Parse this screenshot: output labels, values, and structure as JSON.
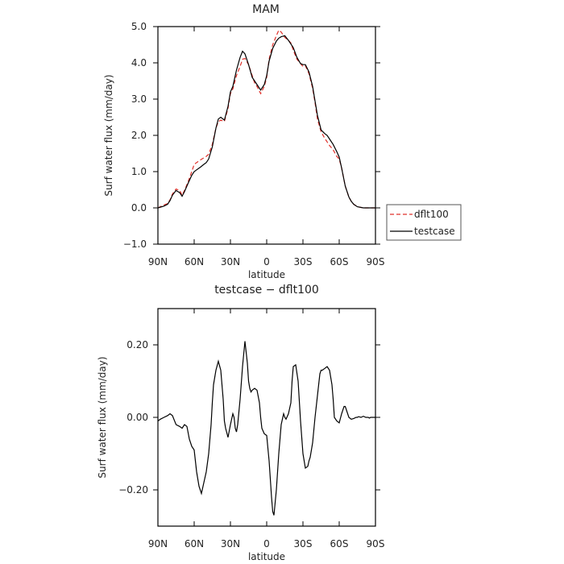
{
  "chart_data": [
    {
      "type": "line",
      "title": "MAM",
      "xlabel": "latitude",
      "ylabel": "Surf water flux (mm/day)",
      "xlim": [
        90,
        -90
      ],
      "ylim": [
        -1.0,
        5.0
      ],
      "xticks": [
        90,
        60,
        30,
        0,
        -30,
        -60,
        -90
      ],
      "xtick_labels": [
        "90N",
        "60N",
        "30N",
        "0",
        "30S",
        "60S",
        "90S"
      ],
      "yticks": [
        -1.0,
        0.0,
        1.0,
        2.0,
        3.0,
        4.0,
        5.0
      ],
      "ytick_labels": [
        "−1.0",
        "0.0",
        "1.0",
        "2.0",
        "3.0",
        "4.0",
        "5.0"
      ],
      "legend": "right",
      "grid": false,
      "series": [
        {
          "name": "dflt100",
          "color": "#e0302a",
          "dash": "dashed",
          "x": [
            90,
            85,
            82,
            80,
            78,
            75,
            72,
            70,
            68,
            65,
            62,
            60,
            58,
            55,
            52,
            50,
            48,
            45,
            42,
            40,
            38,
            35,
            32,
            30,
            28,
            25,
            22,
            20,
            18,
            15,
            12,
            10,
            8,
            5,
            2,
            0,
            -2,
            -5,
            -8,
            -10,
            -12,
            -15,
            -18,
            -20,
            -22,
            -25,
            -28,
            -30,
            -32,
            -35,
            -38,
            -40,
            -42,
            -45,
            -48,
            -50,
            -52,
            -55,
            -58,
            -60,
            -62,
            -65,
            -68,
            -70,
            -72,
            -75,
            -80,
            -85,
            -90
          ],
          "y": [
            0.0,
            0.08,
            0.12,
            0.22,
            0.38,
            0.52,
            0.48,
            0.35,
            0.48,
            0.72,
            1.0,
            1.2,
            1.25,
            1.32,
            1.38,
            1.42,
            1.48,
            1.75,
            2.2,
            2.38,
            2.42,
            2.38,
            2.75,
            3.15,
            3.28,
            3.65,
            3.9,
            4.1,
            4.12,
            3.95,
            3.65,
            3.45,
            3.35,
            3.15,
            3.35,
            3.6,
            4.1,
            4.5,
            4.75,
            4.9,
            4.85,
            4.7,
            4.62,
            4.55,
            4.35,
            4.1,
            3.98,
            3.9,
            3.92,
            3.7,
            3.3,
            2.9,
            2.45,
            2.1,
            1.92,
            1.82,
            1.72,
            1.6,
            1.42,
            1.35,
            1.1,
            0.6,
            0.3,
            0.18,
            0.1,
            0.03,
            0.0,
            0.0,
            0.0
          ]
        },
        {
          "name": "testcase",
          "color": "#000000",
          "dash": "solid",
          "x": [
            90,
            85,
            82,
            80,
            78,
            75,
            72,
            70,
            68,
            65,
            62,
            60,
            58,
            55,
            52,
            50,
            48,
            45,
            42,
            40,
            38,
            35,
            32,
            30,
            28,
            25,
            22,
            20,
            18,
            15,
            12,
            10,
            8,
            5,
            2,
            0,
            -2,
            -5,
            -8,
            -10,
            -12,
            -15,
            -18,
            -20,
            -22,
            -25,
            -28,
            -30,
            -32,
            -35,
            -38,
            -40,
            -42,
            -45,
            -48,
            -50,
            -52,
            -55,
            -58,
            -60,
            -62,
            -65,
            -68,
            -70,
            -72,
            -75,
            -80,
            -85,
            -90
          ],
          "y": [
            0.0,
            0.05,
            0.1,
            0.2,
            0.35,
            0.48,
            0.42,
            0.32,
            0.45,
            0.68,
            0.9,
            1.0,
            1.05,
            1.12,
            1.2,
            1.25,
            1.35,
            1.68,
            2.2,
            2.45,
            2.5,
            2.42,
            2.8,
            3.2,
            3.35,
            3.8,
            4.15,
            4.32,
            4.25,
            3.95,
            3.6,
            3.5,
            3.4,
            3.25,
            3.4,
            3.65,
            4.05,
            4.4,
            4.6,
            4.68,
            4.72,
            4.75,
            4.62,
            4.52,
            4.42,
            4.15,
            3.98,
            3.95,
            3.95,
            3.75,
            3.35,
            2.95,
            2.55,
            2.15,
            2.05,
            2.0,
            1.9,
            1.75,
            1.55,
            1.4,
            1.1,
            0.6,
            0.3,
            0.18,
            0.1,
            0.03,
            0.0,
            0.0,
            0.0
          ]
        }
      ]
    },
    {
      "type": "line",
      "title": "testcase − dflt100",
      "xlabel": "latitude",
      "ylabel": "Surf water flux (mm/day)",
      "xlim": [
        90,
        -90
      ],
      "ylim": [
        -0.3,
        0.3
      ],
      "xticks": [
        90,
        60,
        30,
        0,
        -30,
        -60,
        -90
      ],
      "xtick_labels": [
        "90N",
        "60N",
        "30N",
        "0",
        "30S",
        "60S",
        "90S"
      ],
      "yticks": [
        -0.2,
        0.0,
        0.2
      ],
      "ytick_labels": [
        "−0.20",
        "0.00",
        "0.20"
      ],
      "grid": false,
      "series": [
        {
          "color": "#000000",
          "dash": "solid",
          "x": [
            90,
            88,
            85,
            82,
            80,
            78,
            75,
            72,
            70,
            68,
            66,
            64,
            62,
            60,
            58,
            56,
            55,
            54,
            52,
            50,
            48,
            46,
            45,
            44,
            42,
            40,
            38,
            36,
            35,
            34,
            32,
            30,
            28,
            27,
            26,
            25,
            24,
            22,
            20,
            18,
            16,
            15,
            14,
            13,
            12,
            10,
            8,
            6,
            5,
            4,
            2,
            0,
            -2,
            -4,
            -5,
            -6,
            -8,
            -10,
            -12,
            -14,
            -15,
            -16,
            -18,
            -20,
            -21,
            -22,
            -24,
            -26,
            -28,
            -30,
            -32,
            -34,
            -35,
            -36,
            -38,
            -40,
            -42,
            -44,
            -45,
            -46,
            -48,
            -50,
            -52,
            -54,
            -55,
            -56,
            -58,
            -60,
            -62,
            -64,
            -65,
            -66,
            -68,
            -70,
            -72,
            -74,
            -75,
            -76,
            -78,
            -80,
            -82,
            -84,
            -85,
            -86,
            -88,
            -90
          ],
          "y": [
            -0.01,
            -0.005,
            0.0,
            0.005,
            0.01,
            0.005,
            -0.02,
            -0.025,
            -0.03,
            -0.02,
            -0.025,
            -0.06,
            -0.08,
            -0.09,
            -0.15,
            -0.19,
            -0.2,
            -0.21,
            -0.18,
            -0.15,
            -0.1,
            -0.02,
            0.04,
            0.09,
            0.13,
            0.155,
            0.13,
            0.05,
            -0.01,
            -0.03,
            -0.055,
            -0.02,
            0.01,
            0.0,
            -0.03,
            -0.04,
            -0.02,
            0.05,
            0.14,
            0.21,
            0.15,
            0.1,
            0.08,
            0.07,
            0.075,
            0.08,
            0.075,
            0.04,
            0.0,
            -0.03,
            -0.045,
            -0.05,
            -0.12,
            -0.22,
            -0.26,
            -0.27,
            -0.2,
            -0.1,
            -0.02,
            0.01,
            0.0,
            -0.005,
            0.01,
            0.04,
            0.1,
            0.14,
            0.145,
            0.1,
            -0.01,
            -0.1,
            -0.14,
            -0.135,
            -0.12,
            -0.11,
            -0.07,
            0.0,
            0.06,
            0.12,
            0.13,
            0.13,
            0.135,
            0.14,
            0.13,
            0.09,
            0.05,
            0.0,
            -0.01,
            -0.015,
            0.01,
            0.03,
            0.03,
            0.02,
            0.0,
            -0.005,
            -0.003,
            0.0,
            0.0,
            0.002,
            0.0,
            0.003,
            0.0,
            0.0,
            -0.002,
            0.0,
            0.0,
            0.0
          ]
        }
      ]
    }
  ]
}
